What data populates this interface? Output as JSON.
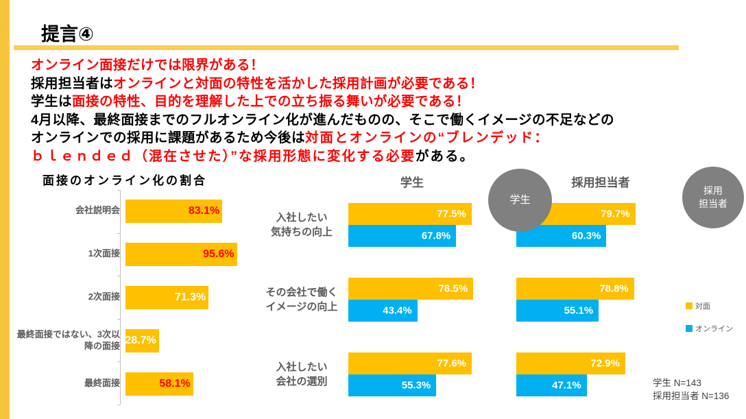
{
  "page": {
    "title": "提言④"
  },
  "message": {
    "lines": [
      {
        "segments": [
          {
            "text": "オンライン面接だけでは限界がある！",
            "color": "#FF0000"
          }
        ]
      },
      {
        "segments": [
          {
            "text": "採用担当者は",
            "color": "#000000"
          },
          {
            "text": "オンラインと対面の特性を活かした採用計画が必要である！",
            "color": "#FF0000"
          }
        ]
      },
      {
        "segments": [
          {
            "text": "学生は",
            "color": "#000000"
          },
          {
            "text": "面接の特性、目的を理解した上での立ち振る舞いが必要である！",
            "color": "#FF0000"
          }
        ]
      },
      {
        "segments": [
          {
            "text": "4月以降、最終面接までのフルオンライン化が進んだものの、そこで働くイメージの不足などの",
            "color": "#000000"
          }
        ]
      },
      {
        "segments": [
          {
            "text": "オンラインでの採用に課題があるため今後は",
            "color": "#000000"
          },
          {
            "text": "対面とオンラインの“ブレンデッド：",
            "color": "#FF0000",
            "spaced": true
          }
        ]
      },
      {
        "segments": [
          {
            "text": "ｂｌｅｎｄｅｄ（混在させた）”な採用形態に変化する必要",
            "color": "#FF0000",
            "spaced": true
          },
          {
            "text": "がある。",
            "color": "#000000",
            "spaced": true
          }
        ]
      }
    ]
  },
  "chart_data": [
    {
      "type": "bar",
      "orientation": "horizontal",
      "title": "面接のオンライン化の割合",
      "categories": [
        "会社説明会",
        "1次面接",
        "2次面接",
        "最終面接ではない、3次以降の面接",
        "最終面接"
      ],
      "values": [
        83.1,
        95.6,
        71.3,
        28.7,
        58.1
      ],
      "unit": "%",
      "xlim": [
        0,
        100
      ],
      "bar_color": "#FFC000",
      "value_label_colors": [
        "#FF0000",
        "#FF0000",
        "#FFFFFF",
        "#FFFFFF",
        "#FF0000"
      ]
    },
    {
      "type": "bar",
      "orientation": "horizontal",
      "groups": [
        "学生",
        "採用担当者"
      ],
      "categories": [
        "入社したい気持ちの向上",
        "その会社で働くイメージの向上",
        "入社したい会社の選別"
      ],
      "category_labels": [
        "入社したい\n気持ちの向上",
        "その会社で働く\nイメージの向上",
        "入社したい\n会社の選別"
      ],
      "series": [
        {
          "name": "対面",
          "color": "#FFC000",
          "values": {
            "学生": [
              77.5,
              78.5,
              77.6
            ],
            "採用担当者": [
              79.7,
              78.8,
              72.9
            ]
          }
        },
        {
          "name": "オンライン",
          "color": "#00B0F0",
          "values": {
            "学生": [
              67.8,
              43.4,
              55.3
            ],
            "採用担当者": [
              60.3,
              55.1,
              47.1
            ]
          }
        }
      ],
      "unit": "%",
      "xlim": [
        0,
        100
      ],
      "legend_position": "right"
    }
  ],
  "badges": {
    "students": "学生",
    "recruiters": "採用\n担当者"
  },
  "legend": {
    "items": [
      {
        "label": "対面",
        "color": "#FFC000"
      },
      {
        "label": "オンライン",
        "color": "#00B0F0"
      }
    ]
  },
  "footnote": {
    "lines": [
      "学生 N=143",
      "採用担当者 N=136"
    ]
  }
}
